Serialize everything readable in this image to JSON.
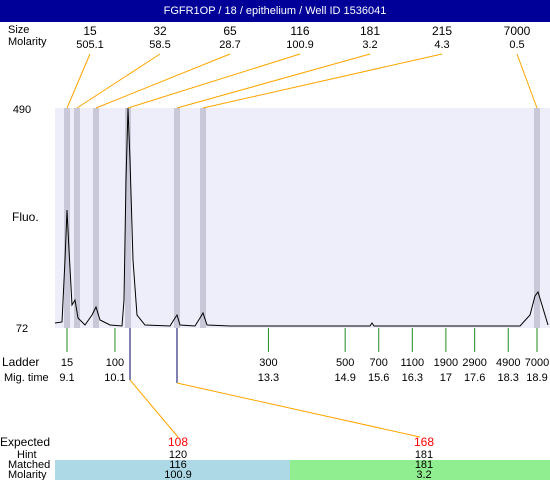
{
  "header": {
    "title": "FGFR1OP  / 18 / epithelium / Well ID 1536041"
  },
  "peak_table": {
    "labels": [
      "Size",
      "Molarity"
    ],
    "sizes": [
      15,
      32,
      65,
      116,
      181,
      215,
      7000
    ],
    "molarity": [
      505.1,
      58.5,
      28.7,
      100.9,
      3.2,
      4.3,
      0.5
    ]
  },
  "y_axis": {
    "label": "Fluo.",
    "max": 490,
    "min": 72
  },
  "ladder": {
    "labels": [
      "Ladder",
      "Mig. time"
    ],
    "sizes": [
      15,
      100,
      300,
      500,
      700,
      1100,
      1900,
      2900,
      4900,
      7000
    ],
    "mig_times": [
      9.1,
      10.1,
      13.3,
      14.9,
      15.6,
      16.3,
      17,
      17.6,
      18.3,
      18.9
    ]
  },
  "expected": {
    "labels": [
      "Expected",
      "Hint",
      "Matched",
      "Molarity"
    ],
    "columns": [
      {
        "expected": 108,
        "hint": 120,
        "matched": 116,
        "molarity": 100.9
      },
      {
        "expected": 168,
        "hint": 181,
        "matched": 181,
        "molarity": 3.2
      }
    ]
  }
}
